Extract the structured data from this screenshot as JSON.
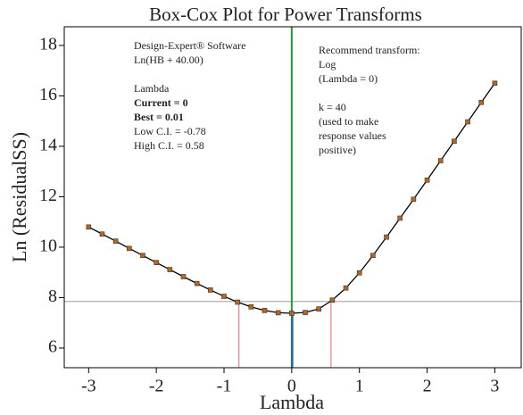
{
  "chart_data": {
    "type": "line",
    "title": "Box-Cox Plot for Power Transforms",
    "x_label": "Lambda",
    "y_label": "Ln (ResidualSS)",
    "xlim": [
      -3.36,
      3.39
    ],
    "ylim": [
      5.22,
      18.74
    ],
    "xticks": [
      -3,
      -2,
      -1,
      0,
      1,
      2,
      3
    ],
    "yticks": [
      6,
      8,
      10,
      12,
      14,
      16,
      18
    ],
    "x": [
      -3,
      -2.8,
      -2.6,
      -2.4,
      -2.2,
      -2,
      -1.8,
      -1.6,
      -1.4,
      -1.2,
      -1,
      -0.8,
      -0.6,
      -0.4,
      -0.2,
      0,
      0.2,
      0.4,
      0.6,
      0.8,
      1,
      1.2,
      1.4,
      1.6,
      1.8,
      2,
      2.2,
      2.4,
      2.6,
      2.8,
      3
    ],
    "series": [
      {
        "name": "Ln(ResidualSS)",
        "color": "#000000",
        "marker_color": "#b5651d",
        "values": [
          10.8,
          10.52,
          10.24,
          9.95,
          9.67,
          9.39,
          9.11,
          8.83,
          8.56,
          8.3,
          8.05,
          7.82,
          7.63,
          7.49,
          7.4,
          7.38,
          7.41,
          7.55,
          7.9,
          8.38,
          8.98,
          9.67,
          10.4,
          11.15,
          11.9,
          12.66,
          13.43,
          14.2,
          14.97,
          15.74,
          16.5
        ]
      }
    ],
    "threshold": 7.85,
    "current": 0,
    "best": 0.01,
    "low_ci": -0.78,
    "high_ci": 0.58,
    "annotations_left": [
      "Design-Expert® Software",
      "Ln(HB + 40.00)",
      "Lambda",
      "Current = 0",
      "Best = 0.01",
      "Low C.I. = -0.78",
      "High C.I. = 0.58"
    ],
    "annotations_right": [
      "Recommend transform:",
      "Log",
      "(Lambda = 0)",
      "k = 40",
      "(used to make",
      "response values",
      "positive)"
    ]
  }
}
